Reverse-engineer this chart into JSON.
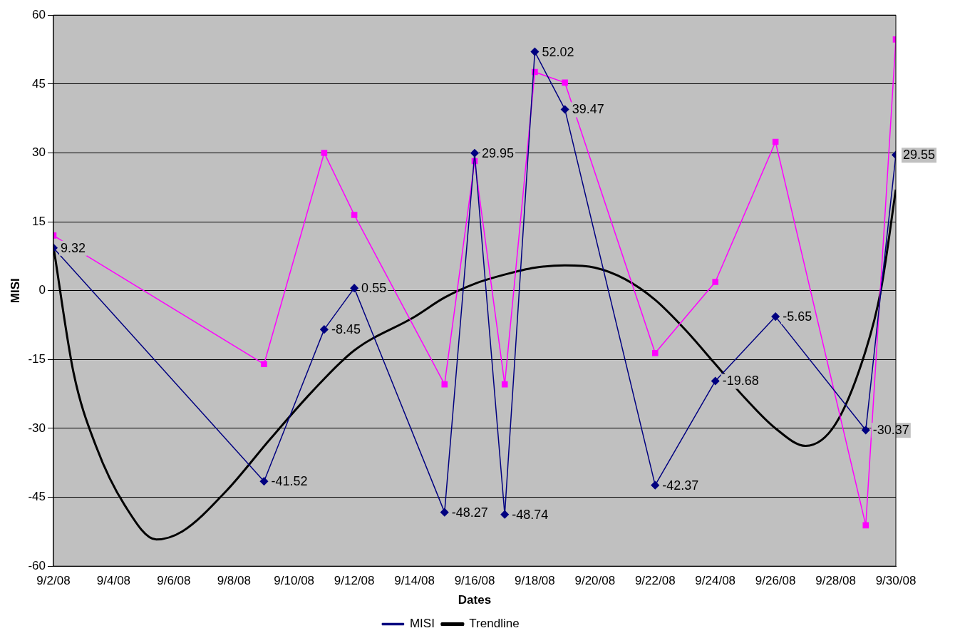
{
  "chart_data": {
    "type": "line",
    "xlabel": "Dates",
    "ylabel": "MISI",
    "xlim": [
      "--09-02",
      "--09-30"
    ],
    "xticks": [
      {
        "value": "--09-02",
        "label": "9/2/08"
      },
      {
        "value": "--09-04",
        "label": "9/4/08"
      },
      {
        "value": "--09-06",
        "label": "9/6/08"
      },
      {
        "value": "--09-08",
        "label": "9/8/08"
      },
      {
        "value": "--09-10",
        "label": "9/10/08"
      },
      {
        "value": "--09-12",
        "label": "9/12/08"
      },
      {
        "value": "--09-14",
        "label": "9/14/08"
      },
      {
        "value": "--09-16",
        "label": "9/16/08"
      },
      {
        "value": "--09-18",
        "label": "9/18/08"
      },
      {
        "value": "--09-20",
        "label": "9/20/08"
      },
      {
        "value": "--09-22",
        "label": "9/22/08"
      },
      {
        "value": "--09-24",
        "label": "9/24/08"
      },
      {
        "value": "--09-26",
        "label": "9/26/08"
      },
      {
        "value": "--09-28",
        "label": "9/28/08"
      },
      {
        "value": "--09-30",
        "label": "9/30/08"
      }
    ],
    "ylim": [
      -60,
      60
    ],
    "yticks": [
      -60,
      -45,
      -30,
      -15,
      0,
      15,
      30,
      45,
      60
    ],
    "grid": "y",
    "legend": "bottom",
    "series": [
      {
        "name": "MISI",
        "color": "#000080",
        "marker": "diamond",
        "x": [
          "--09-02",
          "--09-09",
          "--09-11",
          "--09-12",
          "--09-15",
          "--09-16",
          "--09-17",
          "--09-18",
          "--09-19",
          "--09-22",
          "--09-24",
          "--09-26",
          "--09-29",
          "--09-30"
        ],
        "values": [
          9.32,
          -41.52,
          -8.45,
          0.55,
          -48.27,
          29.95,
          -48.74,
          52.02,
          39.47,
          -42.37,
          -19.68,
          -5.65,
          -30.37,
          29.55
        ],
        "value_labels": [
          "9.32",
          "-41.52",
          "-8.45",
          "0.55",
          "-48.27",
          "29.95",
          "-48.74",
          "52.02",
          "39.47",
          "-42.37",
          "-19.68",
          "-5.65",
          "-30.37",
          "29.55"
        ]
      },
      {
        "color": "#ff00ff",
        "marker": "square",
        "x": [
          "--09-02",
          "--09-09",
          "--09-11",
          "--09-12",
          "--09-15",
          "--09-16",
          "--09-17",
          "--09-18",
          "--09-19",
          "--09-22",
          "--09-24",
          "--09-26",
          "--09-29",
          "--09-30"
        ],
        "values": [
          12.0,
          -16.0,
          30.0,
          16.5,
          -20.4,
          28.2,
          -20.4,
          47.6,
          45.3,
          -13.6,
          1.9,
          32.4,
          -51.1,
          54.7
        ]
      },
      {
        "name": "Trendline",
        "color": "#000000",
        "marker": "none",
        "x": [
          "--09-02",
          "--09-02T16:00",
          "--09-03T10:00",
          "--09-04T09:00",
          "--09-05T10:00",
          "--09-06T07:00",
          "--09-07T18:00",
          "--09-09T05:00",
          "--09-10T15:00",
          "--09-12",
          "--09-14",
          "--09-15",
          "--09-16",
          "--09-17",
          "--09-18",
          "--09-19",
          "--09-20",
          "--09-21",
          "--09-22",
          "--09-23",
          "--09-24",
          "--09-25",
          "--09-26",
          "--09-27",
          "--09-28",
          "--09-29",
          "--09-29T12:00",
          "--09-30"
        ],
        "values": [
          9.6,
          -17.8,
          -33.9,
          -46.8,
          -54.2,
          -52.4,
          -43.6,
          -32.3,
          -21.8,
          -13.0,
          -5.7,
          -1.5,
          1.5,
          3.5,
          5.0,
          5.5,
          5.0,
          2.5,
          -2.0,
          -8.5,
          -16.0,
          -23.5,
          -30.0,
          -33.8,
          -29.0,
          -13.0,
          0.0,
          22.0
        ]
      }
    ]
  }
}
